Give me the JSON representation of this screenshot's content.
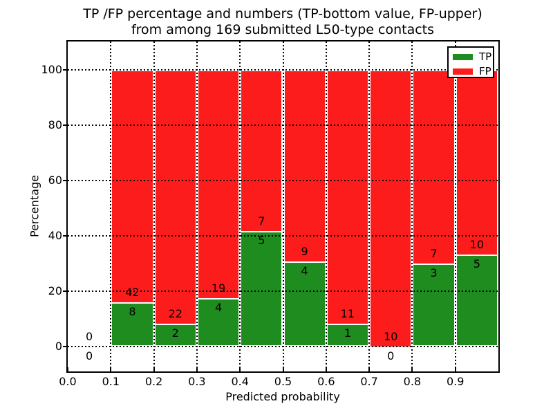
{
  "title": {
    "line1": "TP /FP percentage and numbers (TP-bottom value, FP-upper)",
    "line2": "from among 169 submitted L50-type contacts"
  },
  "axes": {
    "xlabel": "Predicted probability",
    "ylabel": "Percentage",
    "xtick_labels": [
      "0.0",
      "0.1",
      "0.2",
      "0.3",
      "0.4",
      "0.5",
      "0.6",
      "0.7",
      "0.8",
      "0.9"
    ],
    "xtick_values": [
      0.0,
      0.1,
      0.2,
      0.3,
      0.4,
      0.5,
      0.6,
      0.7,
      0.8,
      0.9
    ],
    "ytick_labels": [
      "0",
      "20",
      "40",
      "60",
      "80",
      "100"
    ],
    "ytick_values": [
      0,
      20,
      40,
      60,
      80,
      100
    ],
    "xlim": [
      0.0,
      1.0
    ],
    "ylim": [
      -9,
      110.25
    ],
    "grid": "dotted"
  },
  "colors": {
    "tp": "#1e8c1e",
    "fp": "#fc1c1c",
    "bar_edge": "#ffffff",
    "text": "#000000",
    "background": "#ffffff"
  },
  "legend": {
    "position": "upper-right",
    "entries": [
      {
        "label": "TP",
        "color": "#1e8c1e"
      },
      {
        "label": "FP",
        "color": "#fc1c1c"
      }
    ]
  },
  "chart_data": {
    "type": "bar",
    "stacked": true,
    "normalized_to": 100,
    "total_contacts": 169,
    "note": "Each bin stacks TP% (green, bottom) and FP% (red, top) summing to 100%; numeric labels are raw TP/FP counts (TP-bottom value, FP-upper).",
    "bins": [
      {
        "range": [
          0.0,
          0.1
        ],
        "tp": 0,
        "fp": 0,
        "tp_pct": 0
      },
      {
        "range": [
          0.1,
          0.2
        ],
        "tp": 8,
        "fp": 42,
        "tp_pct": 16.0
      },
      {
        "range": [
          0.2,
          0.3
        ],
        "tp": 2,
        "fp": 22,
        "tp_pct": 8.33
      },
      {
        "range": [
          0.3,
          0.4
        ],
        "tp": 4,
        "fp": 19,
        "tp_pct": 17.39
      },
      {
        "range": [
          0.4,
          0.5
        ],
        "tp": 5,
        "fp": 7,
        "tp_pct": 41.67
      },
      {
        "range": [
          0.5,
          0.6
        ],
        "tp": 4,
        "fp": 9,
        "tp_pct": 30.77
      },
      {
        "range": [
          0.6,
          0.7
        ],
        "tp": 1,
        "fp": 11,
        "tp_pct": 8.33
      },
      {
        "range": [
          0.7,
          0.8
        ],
        "tp": 0,
        "fp": 10,
        "tp_pct": 0
      },
      {
        "range": [
          0.8,
          0.9
        ],
        "tp": 3,
        "fp": 7,
        "tp_pct": 30.0
      },
      {
        "range": [
          0.9,
          1.0
        ],
        "tp": 5,
        "fp": 10,
        "tp_pct": 33.33
      }
    ]
  }
}
